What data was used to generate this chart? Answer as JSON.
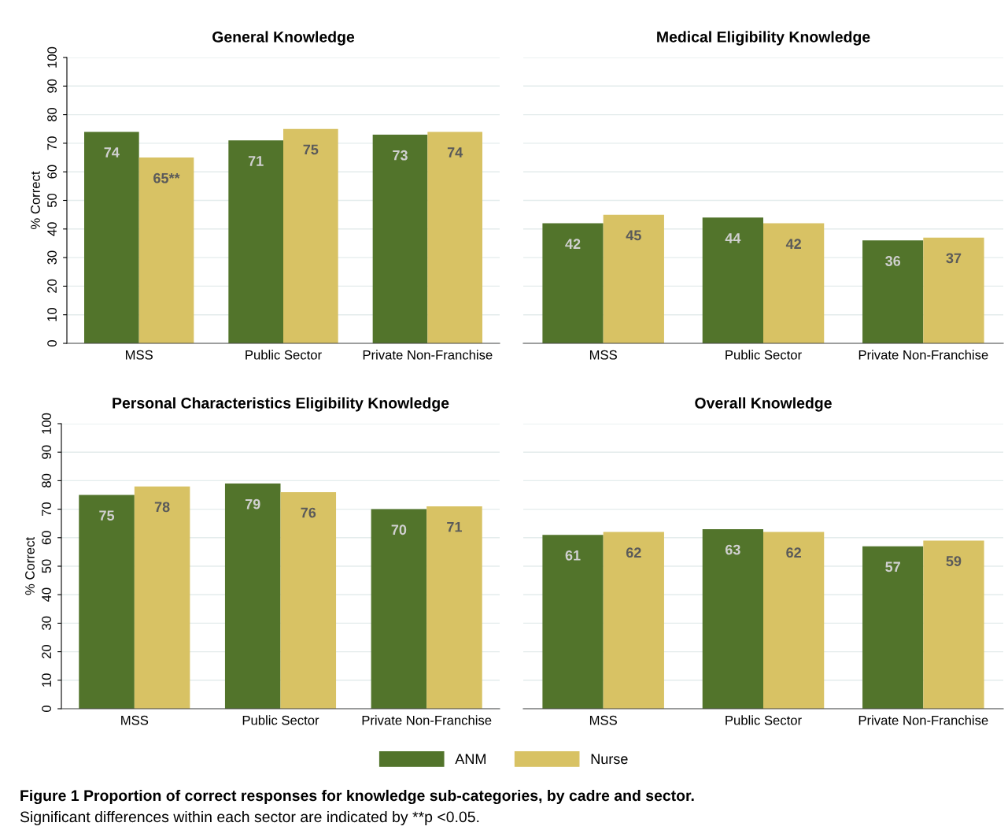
{
  "chart_data": [
    {
      "type": "bar",
      "title": "General Knowledge",
      "ylabel": "% Correct",
      "categories": [
        "MSS",
        "Public Sector",
        "Private Non-Franchise"
      ],
      "series": [
        {
          "name": "ANM",
          "color": "#52742b",
          "values": [
            74,
            71,
            73
          ]
        },
        {
          "name": "Nurse",
          "color": "#d8c264",
          "values": [
            65,
            75,
            74
          ],
          "value_labels": [
            "65**",
            "75",
            "74"
          ]
        }
      ],
      "data_labels": true,
      "ylim": [
        0,
        100
      ],
      "yticks": [
        0,
        10,
        20,
        30,
        40,
        50,
        60,
        70,
        80,
        90,
        100
      ],
      "grid": "y",
      "legend": "bottom"
    },
    {
      "type": "bar",
      "title": "Medical Eligibility Knowledge",
      "categories": [
        "MSS",
        "Public Sector",
        "Private Non-Franchise"
      ],
      "series": [
        {
          "name": "ANM",
          "color": "#52742b",
          "values": [
            42,
            44,
            36
          ]
        },
        {
          "name": "Nurse",
          "color": "#d8c264",
          "values": [
            45,
            42,
            37
          ]
        }
      ],
      "data_labels": true,
      "ylim": [
        0,
        100
      ],
      "yticks": [
        0,
        10,
        20,
        30,
        40,
        50,
        60,
        70,
        80,
        90,
        100
      ],
      "grid": "y",
      "tick_labels": "x"
    },
    {
      "type": "bar",
      "title": "Personal Characteristics Eligibility Knowledge",
      "ylabel": "% Correct",
      "categories": [
        "MSS",
        "Public Sector",
        "Private Non-Franchise"
      ],
      "series": [
        {
          "name": "ANM",
          "color": "#52742b",
          "values": [
            75,
            79,
            70
          ]
        },
        {
          "name": "Nurse",
          "color": "#d8c264",
          "values": [
            78,
            76,
            71
          ]
        }
      ],
      "data_labels": true,
      "ylim": [
        0,
        100
      ],
      "yticks": [
        0,
        10,
        20,
        30,
        40,
        50,
        60,
        70,
        80,
        90,
        100
      ],
      "grid": "y"
    },
    {
      "type": "bar",
      "title": "Overall Knowledge",
      "categories": [
        "MSS",
        "Public Sector",
        "Private Non-Franchise"
      ],
      "series": [
        {
          "name": "ANM",
          "color": "#52742b",
          "values": [
            61,
            63,
            57
          ]
        },
        {
          "name": "Nurse",
          "color": "#d8c264",
          "values": [
            62,
            62,
            59
          ]
        }
      ],
      "data_labels": true,
      "ylim": [
        0,
        100
      ],
      "yticks": [
        0,
        10,
        20,
        30,
        40,
        50,
        60,
        70,
        80,
        90,
        100
      ],
      "grid": "y",
      "tick_labels": "x",
      "annotations": [
        "Figure 1 Proportion of correct responses for knowledge sub-categories, by cadre and sector.",
        "Significant differences within each sector are indicated by **p <0.05."
      ]
    }
  ]
}
